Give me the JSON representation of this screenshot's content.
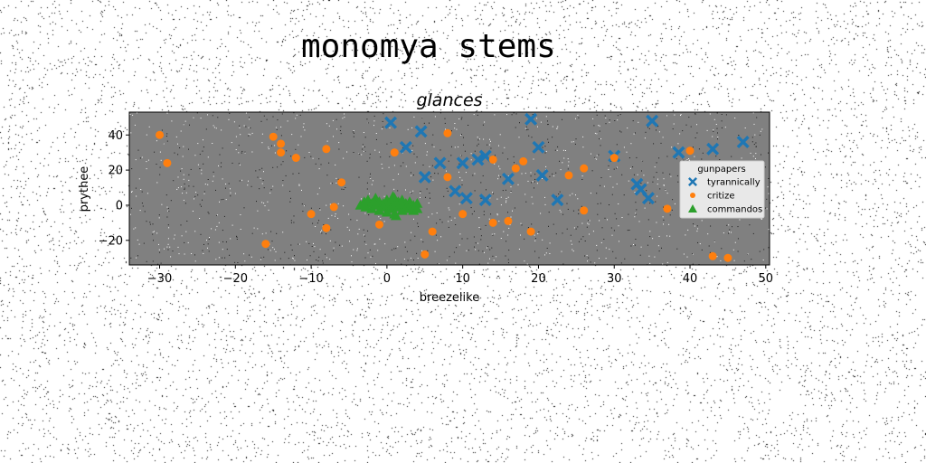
{
  "figure": {
    "suptitle": "monomya stems"
  },
  "chart_data": {
    "type": "scatter",
    "title": "glances",
    "xlabel": "breezelike",
    "ylabel": "prythee",
    "xlim": [
      -34,
      50.5
    ],
    "ylim": [
      -34,
      53
    ],
    "xticks": [
      -30,
      -20,
      -10,
      0,
      10,
      20,
      30,
      40,
      50
    ],
    "yticks": [
      -20,
      0,
      20,
      40
    ],
    "grid": false,
    "axes_background": "#808080",
    "legend": {
      "title": "gunpapers",
      "placement": "right"
    },
    "series": [
      {
        "name": "tyrannically",
        "marker": "X",
        "color": "#1f77b4",
        "points": [
          [
            0.5,
            47
          ],
          [
            2.5,
            33
          ],
          [
            4.5,
            42
          ],
          [
            5,
            16
          ],
          [
            7,
            24
          ],
          [
            9,
            8
          ],
          [
            10,
            24
          ],
          [
            10.5,
            4
          ],
          [
            12,
            26
          ],
          [
            13,
            28
          ],
          [
            13,
            3
          ],
          [
            16,
            15
          ],
          [
            19,
            49
          ],
          [
            20,
            33
          ],
          [
            20.5,
            17
          ],
          [
            22.5,
            3
          ],
          [
            30,
            28
          ],
          [
            33,
            12
          ],
          [
            33.5,
            9
          ],
          [
            34.5,
            4
          ],
          [
            35,
            48
          ],
          [
            38.5,
            30
          ],
          [
            43,
            32
          ],
          [
            47,
            36
          ]
        ]
      },
      {
        "name": "critize",
        "marker": "o",
        "color": "#ff7f0e",
        "points": [
          [
            -30,
            40
          ],
          [
            -29,
            24
          ],
          [
            -16,
            -22
          ],
          [
            -15,
            39
          ],
          [
            -14,
            35
          ],
          [
            -14,
            30
          ],
          [
            -12,
            27
          ],
          [
            -10,
            -5
          ],
          [
            -8,
            32
          ],
          [
            -8,
            -13
          ],
          [
            -7,
            -1
          ],
          [
            -6,
            13
          ],
          [
            -1,
            -11
          ],
          [
            1,
            30
          ],
          [
            5,
            -28
          ],
          [
            6,
            -15
          ],
          [
            8,
            41
          ],
          [
            8,
            16
          ],
          [
            10,
            -5
          ],
          [
            14,
            26
          ],
          [
            14,
            -10
          ],
          [
            16,
            -9
          ],
          [
            17,
            21
          ],
          [
            18,
            25
          ],
          [
            19,
            -15
          ],
          [
            24,
            17
          ],
          [
            26,
            21
          ],
          [
            26,
            -3
          ],
          [
            30,
            27
          ],
          [
            37,
            -2
          ],
          [
            40,
            31
          ],
          [
            43,
            -29
          ],
          [
            45,
            -30
          ]
        ]
      },
      {
        "name": "commandos",
        "marker": "^",
        "color": "#2ca02c",
        "points": [
          [
            -3.5,
            0
          ],
          [
            -3,
            2
          ],
          [
            -2.8,
            -1
          ],
          [
            -2.5,
            3
          ],
          [
            -2,
            1
          ],
          [
            -2,
            -2
          ],
          [
            -1.5,
            4
          ],
          [
            -1.5,
            0
          ],
          [
            -1,
            2
          ],
          [
            -1,
            -3
          ],
          [
            -0.5,
            1
          ],
          [
            -0.5,
            -1
          ],
          [
            0,
            3
          ],
          [
            0,
            0
          ],
          [
            0,
            -4
          ],
          [
            0.5,
            2
          ],
          [
            0.5,
            -2
          ],
          [
            1,
            4
          ],
          [
            1,
            0
          ],
          [
            1,
            -5
          ],
          [
            1.5,
            2
          ],
          [
            1.5,
            -1
          ],
          [
            2,
            3
          ],
          [
            2,
            0
          ],
          [
            2,
            -3
          ],
          [
            2.5,
            1
          ],
          [
            2.5,
            -2
          ],
          [
            3,
            2
          ],
          [
            3,
            -1
          ],
          [
            3.5,
            0
          ],
          [
            3.5,
            -3
          ],
          [
            4,
            1
          ],
          [
            4,
            -2
          ],
          [
            1.2,
            -6
          ],
          [
            0.8,
            5
          ]
        ]
      }
    ]
  }
}
